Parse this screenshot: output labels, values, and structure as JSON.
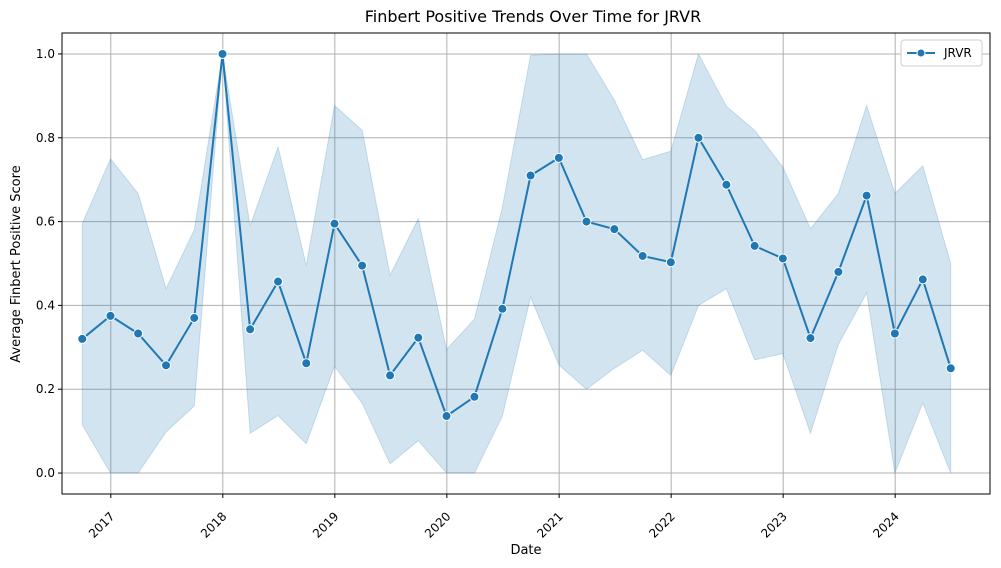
{
  "chart_data": {
    "type": "line",
    "title": "Finbert Positive Trends Over Time for JRVR",
    "xlabel": "Date",
    "ylabel": "Average Finbert Positive Score",
    "x_tick_labels": [
      "2017",
      "2018",
      "2019",
      "2020",
      "2021",
      "2022",
      "2023",
      "2024"
    ],
    "y_ticks": [
      0.0,
      0.2,
      0.4,
      0.6,
      0.8,
      1.0
    ],
    "y_tick_labels": [
      "0.0",
      "0.2",
      "0.4",
      "0.6",
      "0.8",
      "1.0"
    ],
    "xlim": [
      "2016-07-26",
      "2024-11-05"
    ],
    "ylim": [
      -0.05,
      1.05
    ],
    "grid": true,
    "legend": "top-right",
    "colors": {
      "line": "#1f77b4",
      "band": "#1f77b4"
    },
    "series": [
      {
        "name": "JRVR",
        "x": [
          "2016-09-30",
          "2016-12-31",
          "2017-03-31",
          "2017-06-30",
          "2017-09-30",
          "2017-12-31",
          "2018-03-31",
          "2018-06-30",
          "2018-09-30",
          "2018-12-31",
          "2019-03-31",
          "2019-06-30",
          "2019-09-30",
          "2019-12-31",
          "2020-03-31",
          "2020-06-30",
          "2020-09-30",
          "2020-12-31",
          "2021-03-31",
          "2021-06-30",
          "2021-09-30",
          "2021-12-31",
          "2022-03-31",
          "2022-06-30",
          "2022-09-30",
          "2022-12-31",
          "2023-03-31",
          "2023-06-30",
          "2023-09-30",
          "2023-12-31",
          "2024-03-31",
          "2024-06-30"
        ],
        "y": [
          0.32,
          0.375,
          0.333,
          0.257,
          0.37,
          1.0,
          0.343,
          0.457,
          0.262,
          0.595,
          0.495,
          0.233,
          0.323,
          0.136,
          0.182,
          0.392,
          0.71,
          0.752,
          0.6,
          0.582,
          0.518,
          0.503,
          0.8,
          0.688,
          0.542,
          0.512,
          0.322,
          0.48,
          0.662,
          0.333,
          0.462,
          0.25
        ],
        "ci_upper": [
          0.595,
          0.75,
          0.667,
          0.44,
          0.58,
          1.0,
          0.59,
          0.778,
          0.495,
          0.877,
          0.818,
          0.472,
          0.607,
          0.295,
          0.367,
          0.634,
          0.997,
          1.0,
          1.0,
          0.89,
          0.748,
          0.768,
          1.0,
          0.875,
          0.818,
          0.73,
          0.583,
          0.667,
          0.877,
          0.667,
          0.733,
          0.5
        ],
        "ci_lower": [
          0.115,
          0.0,
          0.0,
          0.098,
          0.16,
          1.0,
          0.095,
          0.137,
          0.07,
          0.255,
          0.167,
          0.022,
          0.077,
          0.0,
          0.0,
          0.136,
          0.42,
          0.258,
          0.2,
          0.25,
          0.293,
          0.233,
          0.4,
          0.44,
          0.27,
          0.285,
          0.095,
          0.307,
          0.43,
          0.0,
          0.167,
          0.0
        ]
      }
    ]
  }
}
